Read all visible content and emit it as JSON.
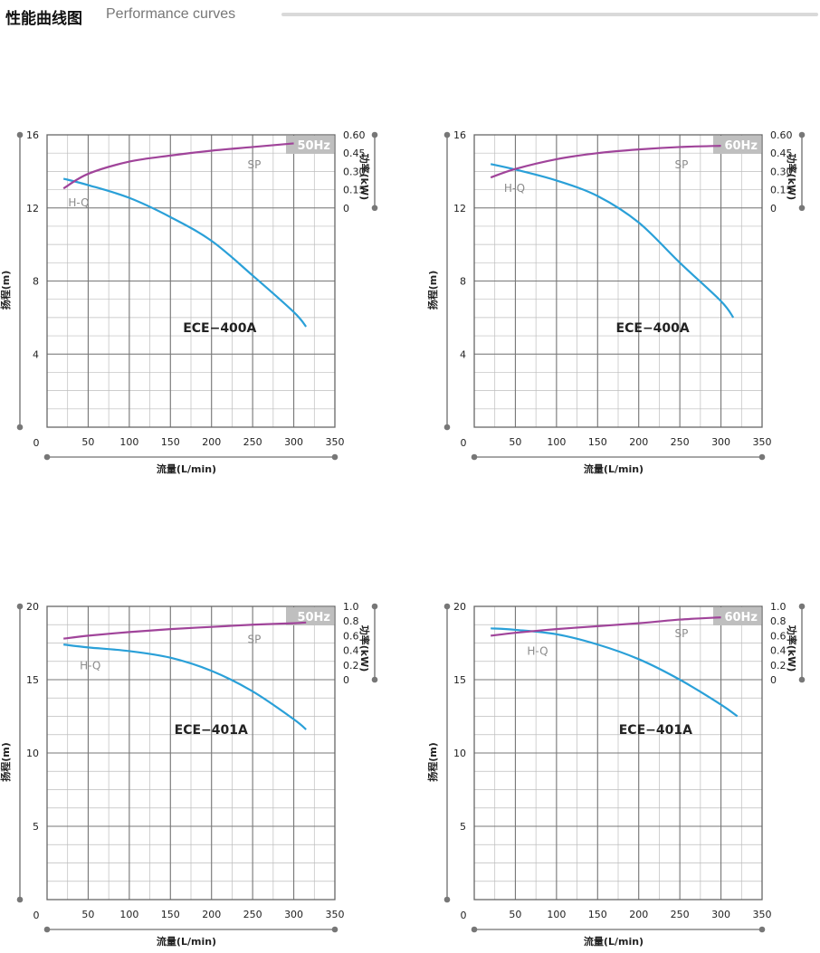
{
  "header": {
    "title_zh": "性能曲线图",
    "title_en": "Performance curves"
  },
  "colors": {
    "hq": "#2aa0d8",
    "sp": "#a0449a",
    "grid": "#8a8a8a",
    "axis": "#888888",
    "badge_bg": "#bfbfbf"
  },
  "chart_data": [
    {
      "type": "line",
      "model": "ECE−400A",
      "frequency": "50Hz",
      "xlabel": "流量(L/min)",
      "ylabel": "扬程(m)",
      "y2label": "功率(kW)",
      "xlim": [
        0,
        350
      ],
      "x_ticks": [
        "0",
        "50",
        "100",
        "150",
        "200",
        "250",
        "300",
        "350"
      ],
      "ylim": [
        0,
        16
      ],
      "y_ticks": [
        "4",
        "8",
        "12",
        "16"
      ],
      "y2lim": [
        0,
        0.6
      ],
      "y2_ticks": [
        "0",
        "0.15",
        "0.30",
        "0.45",
        "0.60"
      ],
      "series": [
        {
          "name": "H-Q",
          "axis": "left",
          "x": [
            20,
            50,
            100,
            150,
            200,
            250,
            300,
            315
          ],
          "y": [
            13.6,
            13.25,
            12.55,
            11.5,
            10.2,
            8.3,
            6.3,
            5.5
          ]
        },
        {
          "name": "SP",
          "axis": "right",
          "x": [
            20,
            50,
            100,
            150,
            200,
            250,
            300
          ],
          "y": [
            0.16,
            0.28,
            0.38,
            0.43,
            0.47,
            0.5,
            0.53
          ]
        }
      ]
    },
    {
      "type": "line",
      "model": "ECE−400A",
      "frequency": "60Hz",
      "xlabel": "流量(L/min)",
      "ylabel": "扬程(m)",
      "y2label": "功率(kW)",
      "xlim": [
        0,
        350
      ],
      "x_ticks": [
        "0",
        "50",
        "100",
        "150",
        "200",
        "250",
        "300",
        "350"
      ],
      "ylim": [
        0,
        16
      ],
      "y_ticks": [
        "4",
        "8",
        "12",
        "16"
      ],
      "y2lim": [
        0,
        0.6
      ],
      "y2_ticks": [
        "0",
        "0.15",
        "0.30",
        "0.45",
        "0.60"
      ],
      "series": [
        {
          "name": "H-Q",
          "axis": "left",
          "x": [
            20,
            50,
            100,
            150,
            200,
            250,
            300,
            315
          ],
          "y": [
            14.4,
            14.1,
            13.5,
            12.65,
            11.2,
            9.0,
            6.9,
            6.0
          ]
        },
        {
          "name": "SP",
          "axis": "right",
          "x": [
            20,
            50,
            100,
            150,
            200,
            250,
            300
          ],
          "y": [
            0.25,
            0.32,
            0.4,
            0.45,
            0.48,
            0.5,
            0.51
          ]
        }
      ]
    },
    {
      "type": "line",
      "model": "ECE−401A",
      "frequency": "50Hz",
      "xlabel": "流量(L/min)",
      "ylabel": "扬程(m)",
      "y2label": "功率(kW)",
      "xlim": [
        0,
        350
      ],
      "x_ticks": [
        "0",
        "50",
        "100",
        "150",
        "200",
        "250",
        "300",
        "350"
      ],
      "ylim": [
        0,
        20
      ],
      "y_ticks": [
        "5",
        "10",
        "15",
        "20"
      ],
      "y2lim": [
        0,
        1.0
      ],
      "y2_ticks": [
        "0",
        "0.2",
        "0.4",
        "0.6",
        "0.8",
        "1.0"
      ],
      "series": [
        {
          "name": "H-Q",
          "axis": "left",
          "x": [
            20,
            50,
            100,
            150,
            200,
            250,
            300,
            315
          ],
          "y": [
            17.4,
            17.2,
            16.95,
            16.5,
            15.6,
            14.2,
            12.3,
            11.6
          ]
        },
        {
          "name": "SP",
          "axis": "right",
          "x": [
            20,
            50,
            100,
            150,
            200,
            250,
            300,
            315
          ],
          "y": [
            0.56,
            0.6,
            0.65,
            0.69,
            0.72,
            0.75,
            0.77,
            0.78
          ]
        }
      ]
    },
    {
      "type": "line",
      "model": "ECE−401A",
      "frequency": "60Hz",
      "xlabel": "流量(L/min)",
      "ylabel": "扬程(m)",
      "y2label": "功率(kW)",
      "xlim": [
        0,
        350
      ],
      "x_ticks": [
        "0",
        "50",
        "100",
        "150",
        "200",
        "250",
        "300",
        "350"
      ],
      "ylim": [
        0,
        20
      ],
      "y_ticks": [
        "5",
        "10",
        "15",
        "20"
      ],
      "y2lim": [
        0,
        1.0
      ],
      "y2_ticks": [
        "0",
        "0.2",
        "0.4",
        "0.6",
        "0.8",
        "1.0"
      ],
      "series": [
        {
          "name": "H-Q",
          "axis": "left",
          "x": [
            20,
            50,
            100,
            150,
            200,
            250,
            300,
            320
          ],
          "y": [
            18.5,
            18.4,
            18.1,
            17.4,
            16.4,
            15.0,
            13.3,
            12.5
          ]
        },
        {
          "name": "SP",
          "axis": "right",
          "x": [
            20,
            50,
            100,
            150,
            200,
            250,
            300
          ],
          "y": [
            0.6,
            0.64,
            0.69,
            0.73,
            0.77,
            0.82,
            0.85
          ]
        }
      ]
    }
  ]
}
